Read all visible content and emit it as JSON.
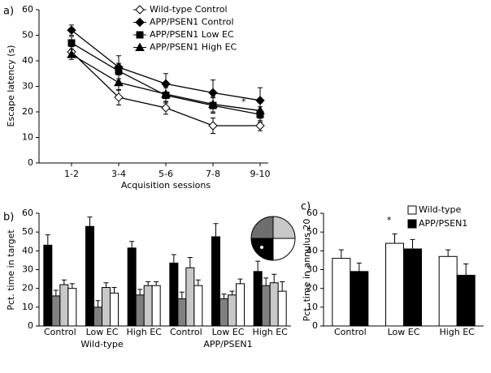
{
  "chart_data": [
    {
      "type": "line",
      "label": "a)",
      "ylabel": "Escape latency (s)",
      "xlabel": "Acquisition sessions",
      "categories": [
        "1-2",
        "3-4",
        "5-6",
        "7-8",
        "9-10"
      ],
      "ylim": [
        0,
        60
      ],
      "yticks": [
        0,
        10,
        20,
        30,
        40,
        50,
        60
      ],
      "legend": "upper right",
      "annotation": "*",
      "series": [
        {
          "name": "Wild-type Control",
          "color": "#ffffff",
          "marker": "diamond",
          "values": [
            43.5,
            25.7,
            21.6,
            14.6,
            14.6
          ],
          "errors": [
            2,
            3,
            2.5,
            3,
            2
          ]
        },
        {
          "name": "APP/PSEN1 Control",
          "color": "#000000",
          "marker": "diamond",
          "values": [
            52,
            37.5,
            31,
            27.5,
            24.5
          ],
          "errors": [
            2,
            4.5,
            4,
            5,
            5
          ]
        },
        {
          "name": "APP/PSEN1 Low EC",
          "color": "#000000",
          "marker": "square",
          "values": [
            47,
            36,
            26.5,
            22.5,
            19
          ],
          "errors": [
            2.5,
            3,
            3,
            3,
            3
          ]
        },
        {
          "name": "APP/PSEN1 High EC",
          "color": "#000000",
          "marker": "triangle",
          "values": [
            42.5,
            31.5,
            27,
            23,
            20.5
          ],
          "errors": [
            2,
            3,
            3,
            3,
            3
          ]
        }
      ]
    },
    {
      "type": "bar",
      "label": "b)",
      "ylabel": "Pct. time in target",
      "categories": [
        "Control",
        "Low EC",
        "High EC",
        "Control",
        "Low EC",
        "High EC"
      ],
      "group_labels": [
        "Wild-type",
        "APP/PSEN1"
      ],
      "ylim": [
        0,
        60
      ],
      "yticks": [
        0,
        10,
        20,
        30,
        40,
        50,
        60
      ],
      "series": [
        {
          "color": "#000000",
          "values": [
            43,
            53,
            41.5,
            33.5,
            47.5,
            29
          ],
          "errors": [
            5.5,
            5,
            3.5,
            4.5,
            7,
            5.5
          ]
        },
        {
          "color": "#808080",
          "values": [
            16,
            10,
            16.5,
            14.5,
            14.5,
            21.5
          ],
          "errors": [
            3,
            3.5,
            3,
            3.5,
            2.5,
            4
          ]
        },
        {
          "color": "#c8c8c8",
          "values": [
            22,
            20.5,
            21.5,
            31,
            16.5,
            23
          ],
          "errors": [
            2.5,
            2.5,
            2,
            5.5,
            2,
            4.5
          ]
        },
        {
          "color": "#ffffff",
          "values": [
            20,
            17.5,
            21.5,
            21.5,
            22.5,
            18.5
          ],
          "errors": [
            2.5,
            3,
            2,
            3,
            2.5,
            5
          ]
        }
      ]
    },
    {
      "type": "bar",
      "label": "c)",
      "ylabel": "Pct. time in annulus 20",
      "categories": [
        "Control",
        "Low EC",
        "High EC"
      ],
      "ylim": [
        0,
        60
      ],
      "yticks": [
        0,
        10,
        20,
        30,
        40,
        50,
        60
      ],
      "legend": "upper right",
      "annotation": "*",
      "series": [
        {
          "name": "Wild-type",
          "color": "#ffffff",
          "values": [
            36,
            44,
            37
          ],
          "errors": [
            4.5,
            5,
            3.5
          ]
        },
        {
          "name": "APP/PSEN1",
          "color": "#000000",
          "values": [
            29,
            41,
            27
          ],
          "errors": [
            4.5,
            5,
            6
          ]
        }
      ]
    }
  ]
}
